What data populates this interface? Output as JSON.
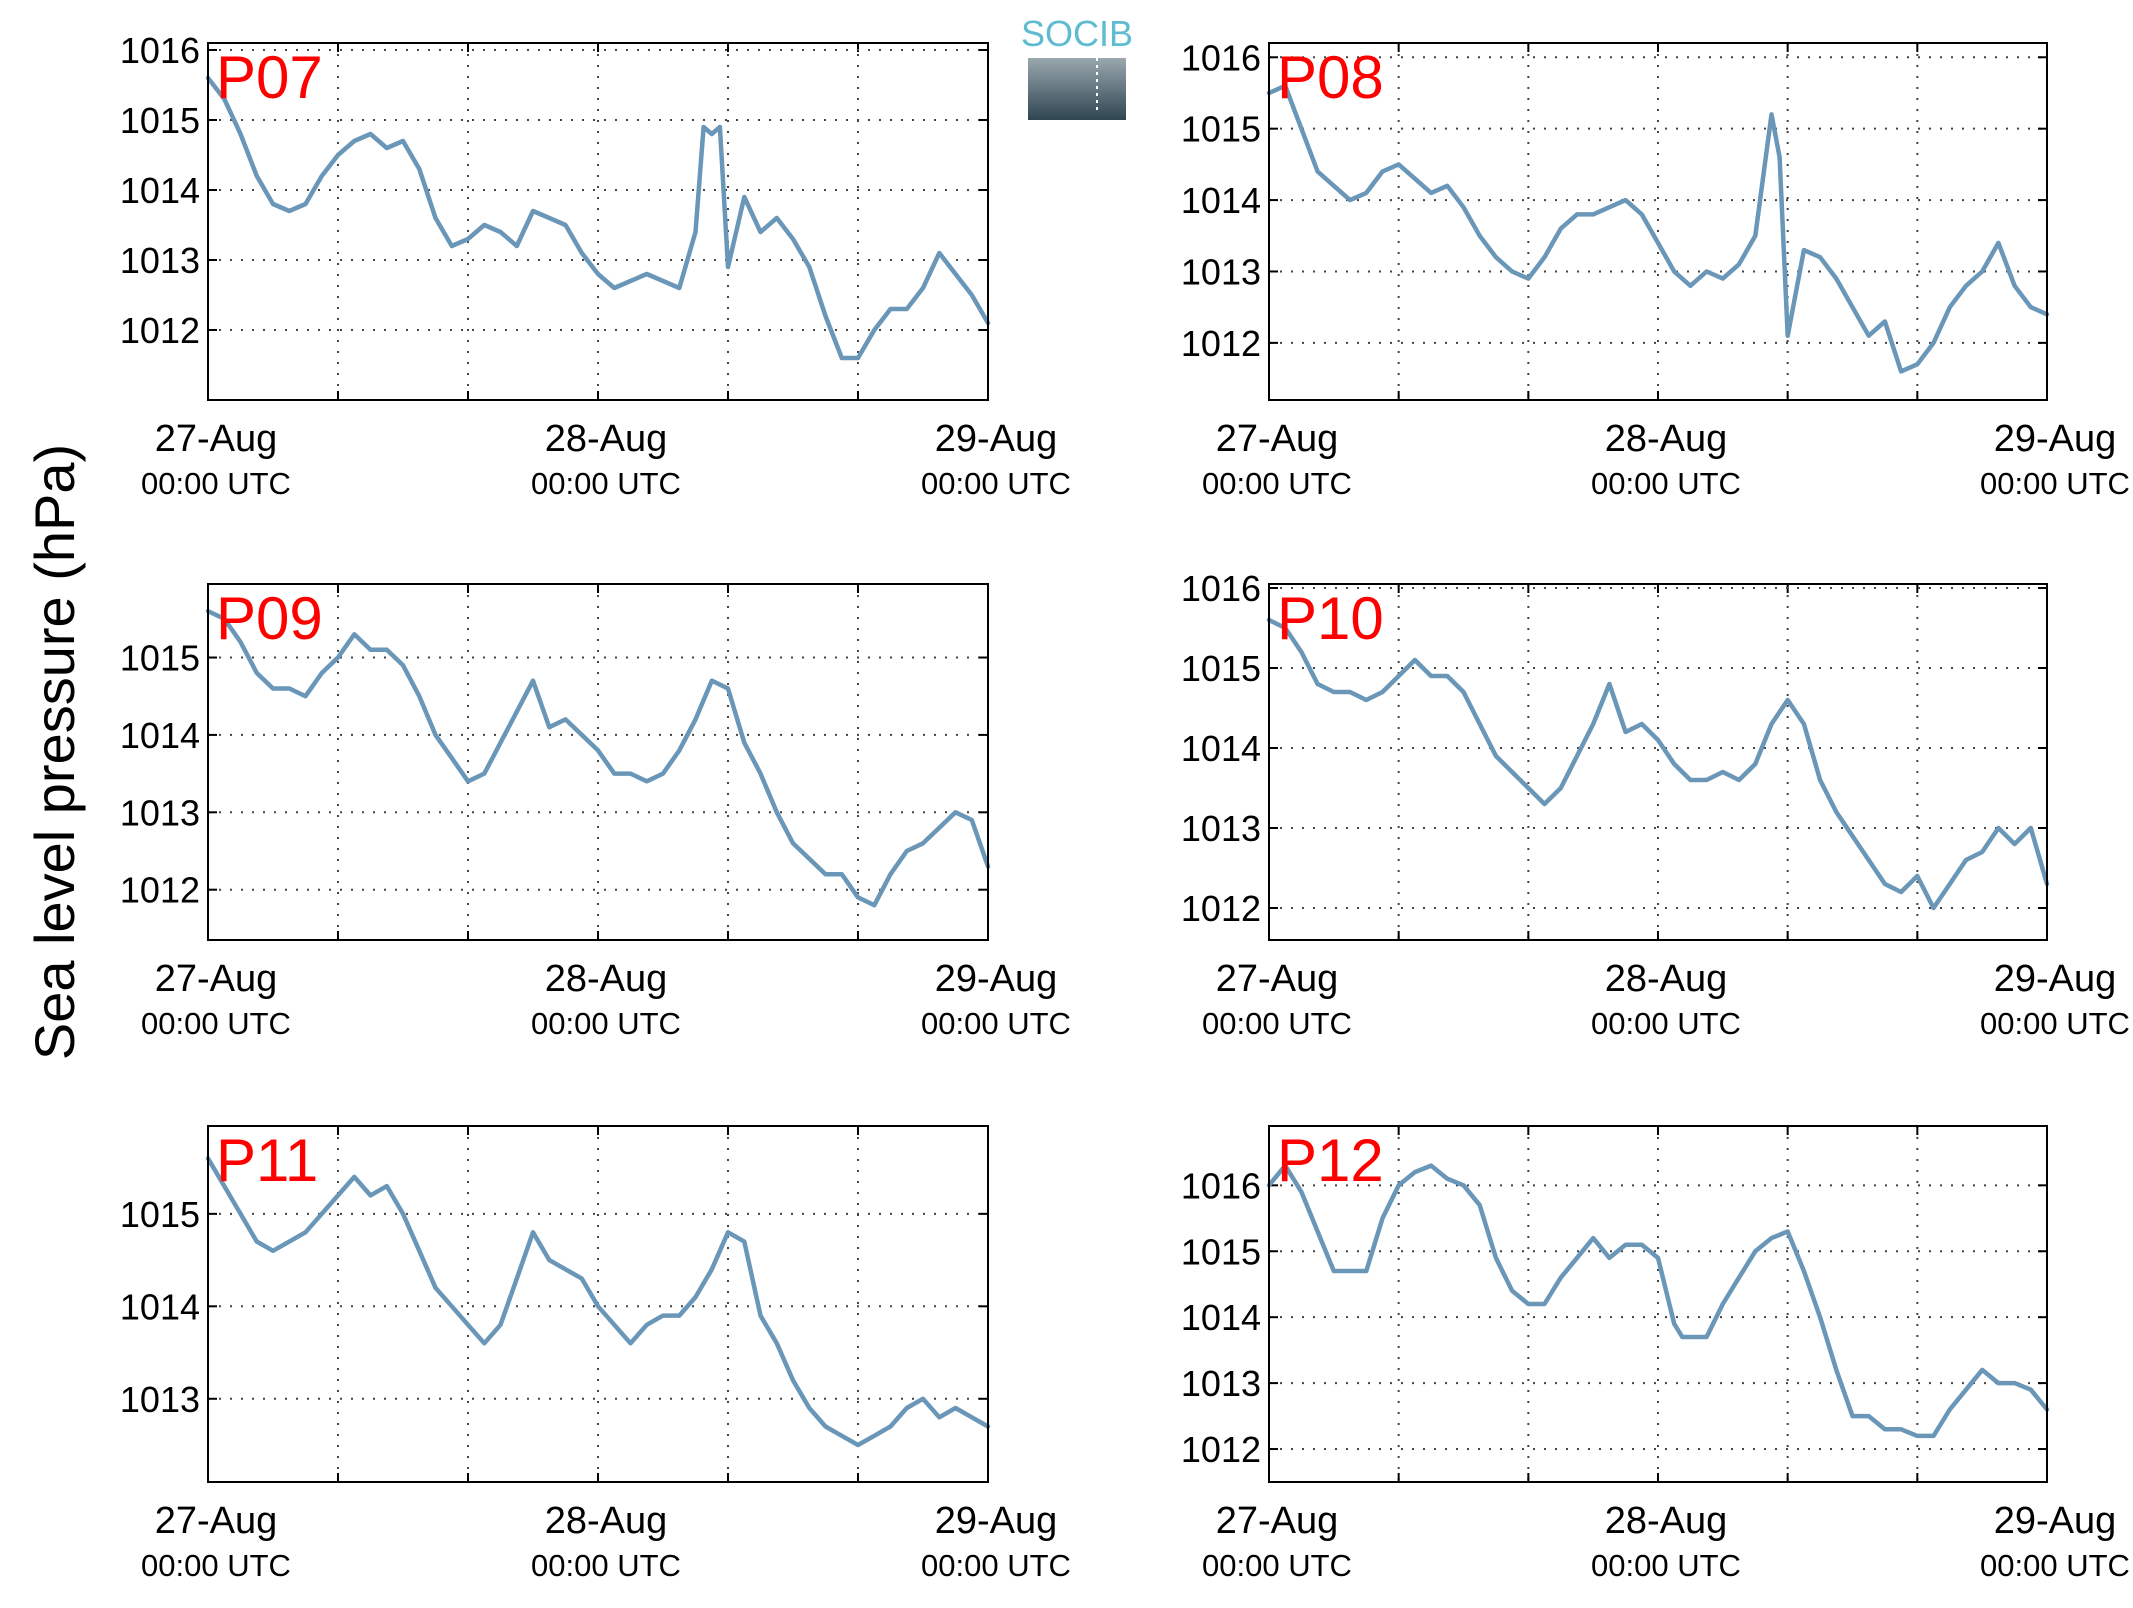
{
  "figure": {
    "ylabel": "Sea level pressure (hPa)",
    "line_color": "#6a96b8",
    "title_color": "#ff0000",
    "logo": {
      "text": "SOCIB",
      "text_color": "#5ebbd1",
      "fill_top": "#9aa7ae",
      "fill_bottom": "#2f4652"
    }
  },
  "chart_data": [
    {
      "type": "line",
      "title": "P07",
      "xlabel": "",
      "ylabel": "Sea level pressure (hPa)",
      "xlim": [
        0,
        48
      ],
      "ylim": [
        1011,
        1016.1
      ],
      "yticks": [
        1012,
        1013,
        1014,
        1015,
        1016
      ],
      "xticks": [
        {
          "value": 0,
          "label": "27-Aug",
          "sublabel": "00:00 UTC"
        },
        {
          "value": 24,
          "label": "28-Aug",
          "sublabel": "00:00 UTC"
        },
        {
          "value": 48,
          "label": "29-Aug",
          "sublabel": "00:00 UTC"
        }
      ],
      "grid": true,
      "series": [
        {
          "x": [
            0,
            1,
            2,
            3,
            4,
            5,
            6,
            7,
            8,
            9,
            10,
            11,
            12,
            13,
            14,
            15,
            16,
            17,
            18,
            19,
            20,
            21,
            22,
            23,
            24,
            25,
            26,
            27,
            28,
            29,
            30,
            30.5,
            31,
            31.5,
            32,
            33,
            34,
            35,
            36,
            37,
            38,
            39,
            40,
            41,
            42,
            43,
            44,
            45,
            46,
            47,
            48
          ],
          "y": [
            1015.6,
            1015.3,
            1014.8,
            1014.2,
            1013.8,
            1013.7,
            1013.8,
            1014.2,
            1014.5,
            1014.7,
            1014.8,
            1014.6,
            1014.7,
            1014.3,
            1013.6,
            1013.2,
            1013.3,
            1013.5,
            1013.4,
            1013.2,
            1013.7,
            1013.6,
            1013.5,
            1013.1,
            1012.8,
            1012.6,
            1012.7,
            1012.8,
            1012.7,
            1012.6,
            1013.4,
            1014.9,
            1014.8,
            1014.9,
            1012.9,
            1013.9,
            1013.4,
            1013.6,
            1013.3,
            1012.9,
            1012.2,
            1011.6,
            1011.6,
            1012.0,
            1012.3,
            1012.3,
            1012.6,
            1013.1,
            1012.8,
            1012.5,
            1012.1
          ]
        }
      ]
    },
    {
      "type": "line",
      "title": "P08",
      "xlabel": "",
      "ylabel": "Sea level pressure (hPa)",
      "xlim": [
        0,
        48
      ],
      "ylim": [
        1011.2,
        1016.2
      ],
      "yticks": [
        1012,
        1013,
        1014,
        1015,
        1016
      ],
      "xticks": [
        {
          "value": 0,
          "label": "27-Aug",
          "sublabel": "00:00 UTC"
        },
        {
          "value": 24,
          "label": "28-Aug",
          "sublabel": "00:00 UTC"
        },
        {
          "value": 48,
          "label": "29-Aug",
          "sublabel": "00:00 UTC"
        }
      ],
      "grid": true,
      "series": [
        {
          "x": [
            0,
            1,
            2,
            3,
            4,
            5,
            6,
            7,
            8,
            9,
            10,
            11,
            12,
            13,
            14,
            15,
            16,
            17,
            18,
            19,
            20,
            21,
            22,
            23,
            24,
            25,
            26,
            27,
            28,
            29,
            30,
            31,
            31.5,
            32,
            33,
            34,
            35,
            36,
            37,
            38,
            39,
            40,
            41,
            42,
            43,
            44,
            45,
            46,
            47,
            48
          ],
          "y": [
            1015.5,
            1015.6,
            1015.0,
            1014.4,
            1014.2,
            1014.0,
            1014.1,
            1014.4,
            1014.5,
            1014.3,
            1014.1,
            1014.2,
            1013.9,
            1013.5,
            1013.2,
            1013.0,
            1012.9,
            1013.2,
            1013.6,
            1013.8,
            1013.8,
            1013.9,
            1014.0,
            1013.8,
            1013.4,
            1013.0,
            1012.8,
            1013.0,
            1012.9,
            1013.1,
            1013.5,
            1015.2,
            1014.6,
            1012.1,
            1013.3,
            1013.2,
            1012.9,
            1012.5,
            1012.1,
            1012.3,
            1011.6,
            1011.7,
            1012.0,
            1012.5,
            1012.8,
            1013.0,
            1013.4,
            1012.8,
            1012.5,
            1012.4
          ]
        }
      ]
    },
    {
      "type": "line",
      "title": "P09",
      "xlabel": "",
      "ylabel": "Sea level pressure (hPa)",
      "xlim": [
        0,
        48
      ],
      "ylim": [
        1011.35,
        1015.95
      ],
      "yticks": [
        1012,
        1013,
        1014,
        1015
      ],
      "xticks": [
        {
          "value": 0,
          "label": "27-Aug",
          "sublabel": "00:00 UTC"
        },
        {
          "value": 24,
          "label": "28-Aug",
          "sublabel": "00:00 UTC"
        },
        {
          "value": 48,
          "label": "29-Aug",
          "sublabel": "00:00 UTC"
        }
      ],
      "grid": true,
      "series": [
        {
          "x": [
            0,
            1,
            2,
            3,
            4,
            5,
            6,
            7,
            8,
            9,
            10,
            11,
            12,
            13,
            14,
            15,
            16,
            17,
            18,
            19,
            20,
            21,
            22,
            23,
            24,
            25,
            26,
            27,
            28,
            29,
            30,
            31,
            32,
            33,
            34,
            35,
            36,
            37,
            38,
            39,
            40,
            41,
            42,
            43,
            44,
            45,
            46,
            47,
            48
          ],
          "y": [
            1015.6,
            1015.5,
            1015.2,
            1014.8,
            1014.6,
            1014.6,
            1014.5,
            1014.8,
            1015.0,
            1015.3,
            1015.1,
            1015.1,
            1014.9,
            1014.5,
            1014.0,
            1013.7,
            1013.4,
            1013.5,
            1013.9,
            1014.3,
            1014.7,
            1014.1,
            1014.2,
            1014.0,
            1013.8,
            1013.5,
            1013.5,
            1013.4,
            1013.5,
            1013.8,
            1014.2,
            1014.7,
            1014.6,
            1013.9,
            1013.5,
            1013.0,
            1012.6,
            1012.4,
            1012.2,
            1012.2,
            1011.9,
            1011.8,
            1012.2,
            1012.5,
            1012.6,
            1012.8,
            1013.0,
            1012.9,
            1012.3
          ]
        }
      ]
    },
    {
      "type": "line",
      "title": "P10",
      "xlabel": "",
      "ylabel": "Sea level pressure (hPa)",
      "xlim": [
        0,
        48
      ],
      "ylim": [
        1011.6,
        1016.05
      ],
      "yticks": [
        1012,
        1013,
        1014,
        1015,
        1016
      ],
      "xticks": [
        {
          "value": 0,
          "label": "27-Aug",
          "sublabel": "00:00 UTC"
        },
        {
          "value": 24,
          "label": "28-Aug",
          "sublabel": "00:00 UTC"
        },
        {
          "value": 48,
          "label": "29-Aug",
          "sublabel": "00:00 UTC"
        }
      ],
      "grid": true,
      "series": [
        {
          "x": [
            0,
            1,
            2,
            3,
            4,
            5,
            6,
            7,
            8,
            9,
            10,
            11,
            12,
            13,
            14,
            15,
            16,
            17,
            18,
            19,
            20,
            21,
            22,
            23,
            24,
            25,
            26,
            27,
            28,
            29,
            30,
            31,
            32,
            33,
            34,
            35,
            36,
            37,
            38,
            39,
            40,
            41,
            42,
            43,
            44,
            45,
            46,
            47,
            48
          ],
          "y": [
            1015.6,
            1015.5,
            1015.2,
            1014.8,
            1014.7,
            1014.7,
            1014.6,
            1014.7,
            1014.9,
            1015.1,
            1014.9,
            1014.9,
            1014.7,
            1014.3,
            1013.9,
            1013.7,
            1013.5,
            1013.3,
            1013.5,
            1013.9,
            1014.3,
            1014.8,
            1014.2,
            1014.3,
            1014.1,
            1013.8,
            1013.6,
            1013.6,
            1013.7,
            1013.6,
            1013.8,
            1014.3,
            1014.6,
            1014.3,
            1013.6,
            1013.2,
            1012.9,
            1012.6,
            1012.3,
            1012.2,
            1012.4,
            1012.0,
            1012.3,
            1012.6,
            1012.7,
            1013.0,
            1012.8,
            1013.0,
            1012.3
          ]
        }
      ]
    },
    {
      "type": "line",
      "title": "P11",
      "xlabel": "",
      "ylabel": "Sea level pressure (hPa)",
      "xlim": [
        0,
        48
      ],
      "ylim": [
        1012.1,
        1015.95
      ],
      "yticks": [
        1013,
        1014,
        1015
      ],
      "xticks": [
        {
          "value": 0,
          "label": "27-Aug",
          "sublabel": "00:00 UTC"
        },
        {
          "value": 24,
          "label": "28-Aug",
          "sublabel": "00:00 UTC"
        },
        {
          "value": 48,
          "label": "29-Aug",
          "sublabel": "00:00 UTC"
        }
      ],
      "grid": true,
      "series": [
        {
          "x": [
            0,
            1,
            2,
            3,
            4,
            5,
            6,
            7,
            8,
            9,
            10,
            11,
            12,
            13,
            14,
            15,
            16,
            17,
            18,
            19,
            20,
            21,
            22,
            23,
            24,
            25,
            26,
            27,
            28,
            29,
            30,
            31,
            32,
            33,
            34,
            35,
            36,
            37,
            38,
            39,
            40,
            41,
            42,
            43,
            44,
            45,
            46,
            47,
            48
          ],
          "y": [
            1015.6,
            1015.3,
            1015.0,
            1014.7,
            1014.6,
            1014.7,
            1014.8,
            1015.0,
            1015.2,
            1015.4,
            1015.2,
            1015.3,
            1015.0,
            1014.6,
            1014.2,
            1014.0,
            1013.8,
            1013.6,
            1013.8,
            1014.3,
            1014.8,
            1014.5,
            1014.4,
            1014.3,
            1014.0,
            1013.8,
            1013.6,
            1013.8,
            1013.9,
            1013.9,
            1014.1,
            1014.4,
            1014.8,
            1014.7,
            1013.9,
            1013.6,
            1013.2,
            1012.9,
            1012.7,
            1012.6,
            1012.5,
            1012.6,
            1012.7,
            1012.9,
            1013.0,
            1012.8,
            1012.9,
            1012.8,
            1012.7
          ]
        }
      ]
    },
    {
      "type": "line",
      "title": "P12",
      "xlabel": "",
      "ylabel": "Sea level pressure (hPa)",
      "xlim": [
        0,
        48
      ],
      "ylim": [
        1011.5,
        1016.9
      ],
      "yticks": [
        1012,
        1013,
        1014,
        1015,
        1016
      ],
      "xticks": [
        {
          "value": 0,
          "label": "27-Aug",
          "sublabel": "00:00 UTC"
        },
        {
          "value": 24,
          "label": "28-Aug",
          "sublabel": "00:00 UTC"
        },
        {
          "value": 48,
          "label": "29-Aug",
          "sublabel": "00:00 UTC"
        }
      ],
      "grid": true,
      "series": [
        {
          "x": [
            0,
            1,
            2,
            3,
            4,
            5,
            6,
            7,
            8,
            9,
            10,
            11,
            12,
            13,
            14,
            15,
            16,
            17,
            18,
            19,
            20,
            21,
            22,
            23,
            24,
            25,
            25.5,
            26,
            27,
            28,
            29,
            30,
            31,
            32,
            33,
            34,
            35,
            36,
            37,
            38,
            39,
            40,
            41,
            42,
            43,
            44,
            45,
            46,
            47,
            48
          ],
          "y": [
            1016.0,
            1016.3,
            1015.9,
            1015.3,
            1014.7,
            1014.7,
            1014.7,
            1015.5,
            1016.0,
            1016.2,
            1016.3,
            1016.1,
            1016.0,
            1015.7,
            1014.9,
            1014.4,
            1014.2,
            1014.2,
            1014.6,
            1014.9,
            1015.2,
            1014.9,
            1015.1,
            1015.1,
            1014.9,
            1013.9,
            1013.7,
            1013.7,
            1013.7,
            1014.2,
            1014.6,
            1015.0,
            1015.2,
            1015.3,
            1014.7,
            1014.0,
            1013.2,
            1012.5,
            1012.5,
            1012.3,
            1012.3,
            1012.2,
            1012.2,
            1012.6,
            1012.9,
            1013.2,
            1013.0,
            1013.0,
            1012.9,
            1012.6
          ]
        }
      ]
    }
  ]
}
